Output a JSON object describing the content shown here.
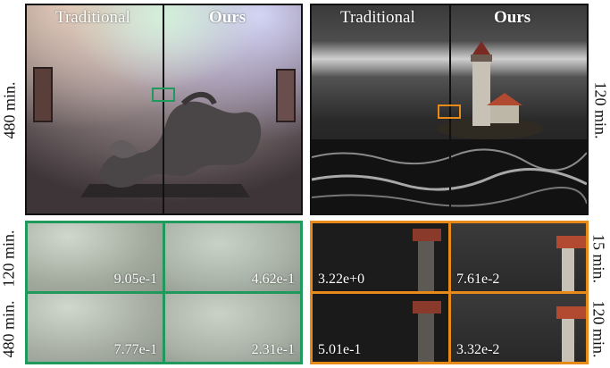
{
  "left_panel": {
    "label_left": "Traditional",
    "label_right": "Ours",
    "time_label": "480 min."
  },
  "right_panel": {
    "label_left": "Traditional",
    "label_right": "Ours",
    "time_label": "120 min."
  },
  "left_crops": {
    "row_labels": [
      "120 min.",
      "480 min."
    ],
    "values": [
      "9.05e-1",
      "4.62e-1",
      "7.77e-1",
      "2.31e-1"
    ],
    "color": "#1f9a5c"
  },
  "right_crops": {
    "row_labels": [
      "15 min.",
      "120 min."
    ],
    "values": [
      "3.22e+0",
      "7.61e-2",
      "5.01e-1",
      "3.32e-2"
    ],
    "color": "#e88a1a"
  }
}
